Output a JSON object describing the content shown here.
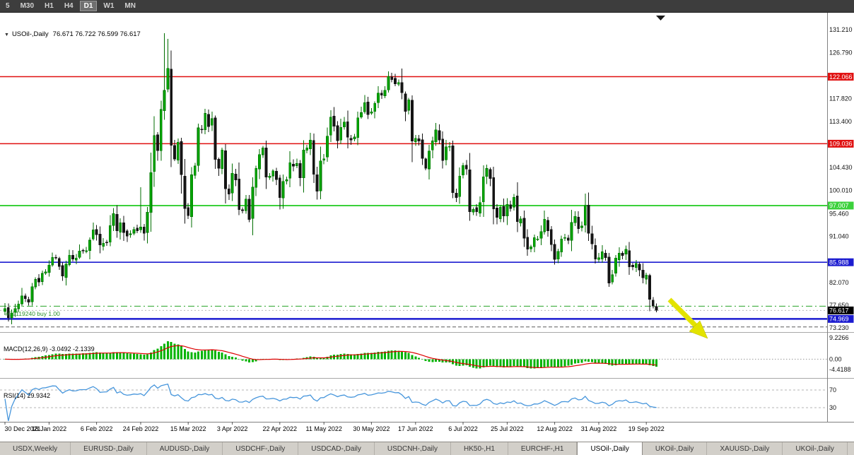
{
  "toolbar": {
    "timeframes": [
      {
        "label": "5",
        "active": false
      },
      {
        "label": "M30",
        "active": false
      },
      {
        "label": "H1",
        "active": false
      },
      {
        "label": "H4",
        "active": false
      },
      {
        "label": "D1",
        "active": true
      },
      {
        "label": "W1",
        "active": false
      },
      {
        "label": "MN",
        "active": false
      }
    ]
  },
  "chart_header": {
    "collapse_icon": "▼",
    "symbol": "USOil-,Daily",
    "ohlc": "76.671 76.722 76.599 76.617"
  },
  "chart_data": {
    "type": "candlestick",
    "symbol": "USOil-",
    "timeframe": "Daily",
    "ohlc_current": {
      "open": 76.671,
      "high": 76.722,
      "low": 76.599,
      "close": 76.617
    },
    "first_open": 76.45,
    "closes": [
      76.99,
      75.21,
      76.08,
      76.99,
      77.85,
      79.46,
      78.9,
      78.23,
      81.22,
      82.64,
      82.12,
      83.82,
      84.1,
      85.43,
      86.96,
      86.9,
      85.14,
      83.31,
      85.6,
      87.35,
      86.61,
      86.82,
      88.15,
      88.2,
      88.26,
      90.27,
      92.31,
      91.32,
      89.36,
      89.66,
      89.88,
      93.1,
      95.46,
      92.07,
      93.66,
      91.76,
      91.07,
      91.5,
      92.35,
      92.1,
      92.81,
      91.59,
      95.72,
      103.41,
      110.6,
      107.67,
      115.68,
      119.4,
      123.7,
      108.7,
      106.02,
      109.33,
      103.01,
      96.44,
      95.04,
      102.98,
      104.7,
      112.12,
      111.76,
      114.93,
      112.34,
      113.9,
      105.96,
      104.24,
      107.82,
      100.28,
      99.27,
      103.28,
      101.96,
      96.23,
      96.03,
      98.26,
      94.29,
      100.6,
      104.25,
      106.95,
      108.21,
      102.56,
      102.75,
      103.79,
      102.07,
      98.54,
      101.7,
      102.02,
      105.36,
      104.69,
      105.17,
      102.41,
      107.81,
      108.26,
      109.77,
      103.09,
      99.76,
      105.71,
      106.13,
      110.49,
      114.2,
      112.4,
      109.59,
      112.21,
      113.23,
      110.29,
      109.77,
      110.33,
      114.09,
      115.07,
      117.0,
      114.67,
      115.26,
      116.87,
      118.87,
      118.5,
      119.41,
      122.11,
      121.51,
      120.67,
      120.93,
      118.93,
      115.31,
      117.59,
      109.56,
      110.1,
      109.52,
      106.19,
      104.27,
      107.62,
      109.57,
      111.76,
      109.78,
      105.76,
      108.43,
      108.5,
      99.5,
      98.53,
      102.73,
      104.79,
      104.09,
      95.84,
      96.3,
      95.78,
      97.59,
      102.6,
      104.22,
      102.26,
      96.35,
      94.7,
      96.7,
      94.98,
      97.26,
      96.42,
      98.62,
      93.89,
      94.42,
      90.66,
      88.54,
      89.01,
      90.76,
      90.5,
      91.93,
      94.34,
      92.09,
      89.41,
      86.53,
      88.11,
      90.5,
      90.77,
      90.23,
      93.74,
      94.89,
      92.52,
      93.06,
      97.01,
      91.64,
      89.55,
      86.61,
      86.87,
      88.0,
      86.88,
      81.94,
      83.54,
      86.79,
      87.78,
      87.31,
      88.48,
      85.1,
      85.11,
      85.73,
      84.45,
      82.94,
      83.49,
      78.74,
      77.5,
      76.617
    ],
    "wick_overrides": {
      "40": {
        "h": 100.54
      },
      "47": {
        "h": 130.5
      },
      "48": {
        "h": 129.44
      },
      "53": {
        "l": 93.53
      },
      "117": {
        "h": 123.68
      },
      "178": {
        "l": 81.2
      },
      "192": {
        "l": 76.25
      }
    },
    "candle_colors": {
      "bull": "#00a400",
      "bull_outline": "#006e00",
      "bear": "#141414"
    },
    "levels": [
      {
        "price": 122.066,
        "color": "#e01010",
        "width": 1.5,
        "style": "solid"
      },
      {
        "price": 109.036,
        "color": "#e01010",
        "width": 1.5,
        "style": "solid"
      },
      {
        "price": 97.007,
        "color": "#3bd13b",
        "width": 2,
        "style": "solid"
      },
      {
        "price": 85.988,
        "color": "#1c1cd0",
        "width": 1.6,
        "style": "solid"
      },
      {
        "price": 74.969,
        "color": "#1c1cd0",
        "width": 2.4,
        "style": "solid"
      },
      {
        "price": 73.4,
        "color": "#5c5c5c",
        "width": 1,
        "style": "dashed",
        "no_label": true
      }
    ],
    "trade_line": {
      "label": "#79119240 buy 1.00",
      "price": 77.45,
      "color": "#28a428"
    },
    "current_price": {
      "price": 76.617,
      "box_color": "#000000"
    },
    "y_axis_labels": [
      131.21,
      126.79,
      117.82,
      113.4,
      104.43,
      100.01,
      95.46,
      91.04,
      82.07,
      77.65,
      73.23
    ],
    "x_axis": {
      "tick_indices": [
        0,
        13,
        27,
        40,
        54,
        67,
        81,
        94,
        108,
        121,
        135,
        148,
        162,
        175,
        189
      ],
      "tick_labels": [
        "30 Dec 2021",
        "18 Jan 2022",
        "6 Feb 2022",
        "24 Feb 2022",
        "15 Mar 2022",
        "3 Apr 2022",
        "22 Apr 2022",
        "11 May 2022",
        "30 May 2022",
        "17 Jun 2022",
        "6 Jul 2022",
        "25 Jul 2022",
        "12 Aug 2022",
        "31 Aug 2022",
        "19 Sep 2022"
      ]
    },
    "indicators": {
      "macd": {
        "header": "MACD(12,26,9) -3.0492 -2.1339",
        "fast": 12,
        "slow": 26,
        "signal": 9,
        "current": [
          -3.0492,
          -2.1339
        ],
        "axis_labels": [
          {
            "text": "9.2266",
            "value": 9.2266
          },
          {
            "text": "0.00",
            "value": 0
          },
          {
            "text": "-4.4188",
            "value": -4.4188
          }
        ],
        "histogram_color": "#00b300",
        "signal_color": "#dd0000"
      },
      "rsi": {
        "header": "RSI(14) 29.9342",
        "period": 14,
        "current": 29.9342,
        "levels": [
          70,
          30
        ],
        "color": "#4796dc"
      }
    }
  },
  "tabs": [
    {
      "label": "USDX,Weekly",
      "active": false
    },
    {
      "label": "EURUSD-,Daily",
      "active": false
    },
    {
      "label": "AUDUSD-,Daily",
      "active": false
    },
    {
      "label": "USDCHF-,Daily",
      "active": false
    },
    {
      "label": "USDCAD-,Daily",
      "active": false
    },
    {
      "label": "USDCNH-,Daily",
      "active": false
    },
    {
      "label": "HK50-,H1",
      "active": false
    },
    {
      "label": "EURCHF-,H1",
      "active": false
    },
    {
      "label": "USOil-,Daily",
      "active": true
    },
    {
      "label": "UKOil-,Daily",
      "active": false
    },
    {
      "label": "XAUUSD-,Daily",
      "active": false
    },
    {
      "label": "UKOil-,Daily",
      "active": false
    }
  ]
}
